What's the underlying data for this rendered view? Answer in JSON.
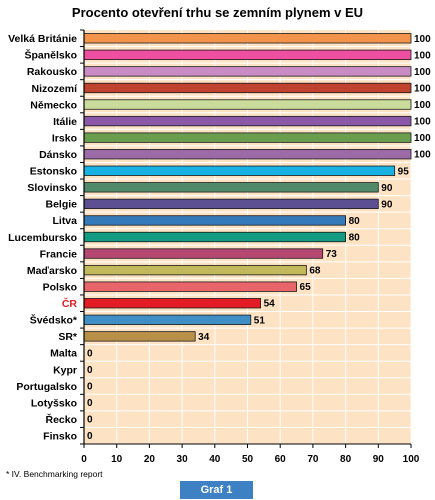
{
  "chart_data": {
    "type": "bar",
    "orientation": "horizontal",
    "title": "Procento otevření trhu se zemním plynem v EU",
    "categories": [
      "Velká Británie",
      "Španělsko",
      "Rakousko",
      "Nizozemí",
      "Německo",
      "Itálie",
      "Irsko",
      "Dánsko",
      "Estonsko",
      "Slovinsko",
      "Belgie",
      "Litva",
      "Lucembursko",
      "Francie",
      "Maďarsko",
      "Polsko",
      "ČR",
      "Švédsko*",
      "SR*",
      "Malta",
      "Kypr",
      "Portugalsko",
      "Lotyšsko",
      "Řecko",
      "Finsko"
    ],
    "values": [
      100,
      100,
      100,
      100,
      100,
      100,
      100,
      100,
      95,
      90,
      90,
      80,
      80,
      73,
      68,
      65,
      54,
      51,
      34,
      0,
      0,
      0,
      0,
      0,
      0
    ],
    "bar_colors": [
      "#f4934b",
      "#ef4fa0",
      "#c98bc4",
      "#c0432f",
      "#c9dc9b",
      "#8a58a6",
      "#6a9e4e",
      "#9c6aa6",
      "#17b1e2",
      "#4f8a6a",
      "#5c4f92",
      "#3479b8",
      "#129a83",
      "#b64771",
      "#c2b85c",
      "#e8666a",
      "#e21b25",
      "#3f8fc6",
      "#b99048",
      "#000000",
      "#000000",
      "#000000",
      "#000000",
      "#000000",
      "#000000"
    ],
    "highlight_category": "ČR",
    "highlight_color": "#e21b25",
    "xlim": [
      0,
      100
    ],
    "xticks": [
      0,
      10,
      20,
      30,
      40,
      50,
      60,
      70,
      80,
      90,
      100
    ],
    "grid": true,
    "plot_background": "#fde3c4"
  },
  "footnote": "* IV. Benchmarking report",
  "caption": "Graf 1"
}
